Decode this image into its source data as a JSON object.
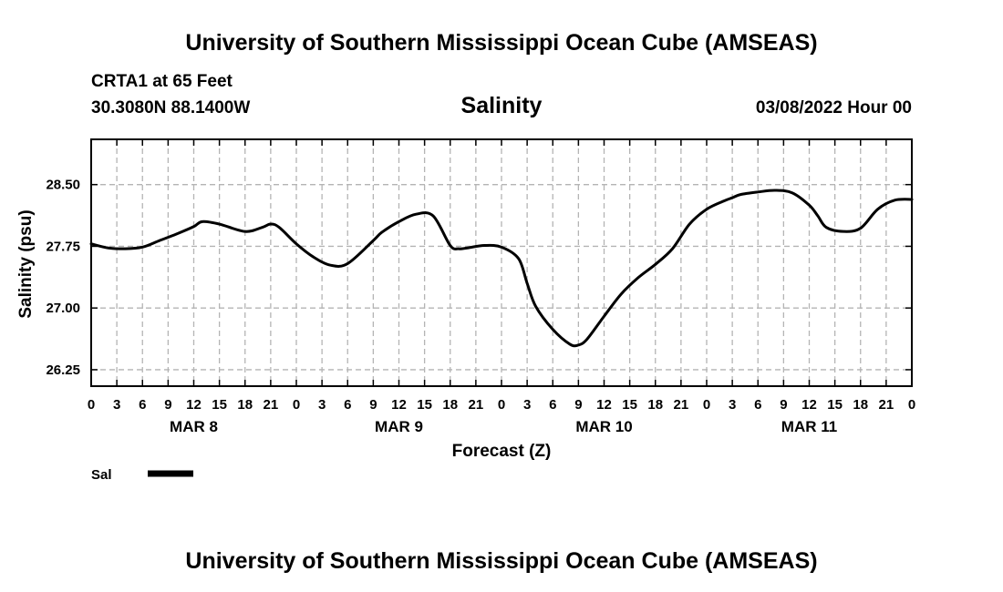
{
  "header": {
    "title": "University of Southern Mississippi Ocean Cube (AMSEAS)",
    "station": "CRTA1 at 65 Feet",
    "location": "30.3080N  88.1400W",
    "variable": "Salinity",
    "datetime": "03/08/2022 Hour 00"
  },
  "footer": {
    "title": "University of Southern Mississippi Ocean Cube (AMSEAS)"
  },
  "colors": {
    "line": "#000000",
    "grid": "#b4b4b4",
    "frame": "#000000"
  },
  "chart_data": {
    "type": "line",
    "title": "Salinity",
    "xlabel": "Forecast (Z)",
    "ylabel": "Salinity (psu)",
    "xlim": [
      0,
      96
    ],
    "ylim": [
      26.05,
      29.05
    ],
    "yticks": [
      26.25,
      27.0,
      27.75,
      28.5
    ],
    "ytick_labels": [
      "26.25",
      "27.00",
      "27.75",
      "28.50"
    ],
    "xtick_hours": [
      0,
      3,
      6,
      9,
      12,
      15,
      18,
      21,
      24,
      27,
      30,
      33,
      36,
      39,
      42,
      45,
      48,
      51,
      54,
      57,
      60,
      63,
      66,
      69,
      72,
      75,
      78,
      81,
      84,
      87,
      90,
      93,
      96
    ],
    "xtick_labels": [
      "0",
      "3",
      "6",
      "9",
      "12",
      "15",
      "18",
      "21",
      "0",
      "3",
      "6",
      "9",
      "12",
      "15",
      "18",
      "21",
      "0",
      "3",
      "6",
      "9",
      "12",
      "15",
      "18",
      "21",
      "0",
      "3",
      "6",
      "9",
      "12",
      "15",
      "18",
      "21",
      "0"
    ],
    "date_labels": [
      {
        "hour": 12,
        "label": "MAR 8"
      },
      {
        "hour": 36,
        "label": "MAR 9"
      },
      {
        "hour": 60,
        "label": "MAR 10"
      },
      {
        "hour": 84,
        "label": "MAR 11"
      }
    ],
    "legend": {
      "position": "bottom-left",
      "label": "Sal"
    },
    "series": [
      {
        "name": "Sal",
        "x": [
          0,
          2,
          4,
          6,
          8,
          10,
          12,
          13,
          15,
          18,
          20,
          21,
          22,
          24,
          26,
          28,
          30,
          33,
          34,
          36,
          38,
          40,
          42,
          43,
          44,
          46,
          48,
          50,
          51,
          52,
          54,
          56,
          57,
          58,
          60,
          62,
          64,
          66,
          68,
          70,
          72,
          74,
          75,
          76,
          78,
          80,
          82,
          84,
          85,
          86,
          88,
          90,
          92,
          94,
          96
        ],
        "y": [
          27.78,
          27.73,
          27.72,
          27.74,
          27.82,
          27.9,
          27.99,
          28.05,
          28.02,
          27.93,
          27.98,
          28.02,
          27.98,
          27.78,
          27.62,
          27.52,
          27.54,
          27.82,
          27.92,
          28.05,
          28.14,
          28.12,
          27.76,
          27.72,
          27.73,
          27.76,
          27.74,
          27.6,
          27.3,
          27.02,
          26.74,
          26.56,
          26.55,
          26.62,
          26.9,
          27.17,
          27.37,
          27.53,
          27.72,
          28.02,
          28.2,
          28.3,
          28.34,
          28.38,
          28.41,
          28.43,
          28.4,
          28.25,
          28.12,
          27.98,
          27.93,
          27.97,
          28.2,
          28.31,
          28.32
        ]
      }
    ]
  }
}
